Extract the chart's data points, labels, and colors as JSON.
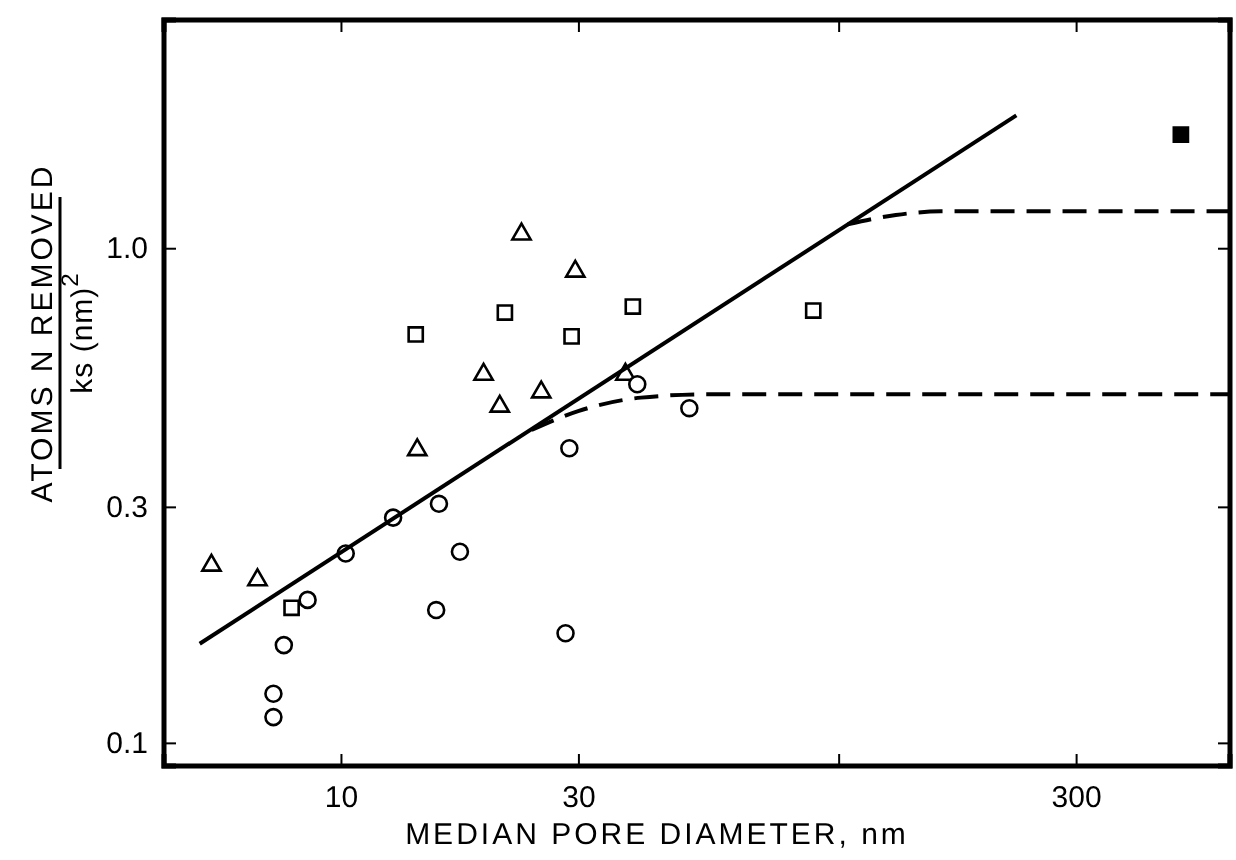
{
  "chart_data": {
    "type": "scatter",
    "xlabel": "MEDIAN PORE DIAMETER, nm",
    "ylabel": "ATOMS N REMOVED\nks (nm)$^{2}$",
    "log": "xy",
    "grid": false,
    "xlim": [
      4.4,
      610
    ],
    "ylim": [
      0.09,
      2.9
    ],
    "xticks": [
      10,
      30,
      {
        "value": 100,
        "label": null
      },
      300
    ],
    "yticks": [
      0.1,
      0.3,
      {
        "value": 1,
        "label": "1.0"
      }
    ],
    "series": [
      {
        "marker": "triangle",
        "color": "#ffffff",
        "x": [
          5.48,
          6.78,
          14.2,
          19.3,
          20.8,
          23.0,
          25.2,
          29.5,
          37.2
        ],
        "values": [
          0.229,
          0.214,
          0.392,
          0.557,
          0.48,
          1.07,
          0.513,
          0.9,
          0.557
        ]
      },
      {
        "marker": "square",
        "color": "#ffffff",
        "x": [
          7.94,
          14.1,
          21.3,
          29.0,
          38.5,
          88.7
        ],
        "values": [
          0.188,
          0.671,
          0.743,
          0.665,
          0.764,
          0.75
        ]
      },
      {
        "marker": "square",
        "color": "#000000",
        "x": [
          486
        ],
        "values": [
          1.7
        ]
      },
      {
        "marker": "circle",
        "color": "#ffffff",
        "x": [
          8.55,
          7.66,
          7.3,
          7.3,
          10.2,
          12.7,
          15.7,
          17.3,
          15.5,
          28.2,
          28.7,
          39.3,
          50.0
        ],
        "values": [
          0.195,
          0.158,
          0.126,
          0.113,
          0.242,
          0.286,
          0.305,
          0.244,
          0.186,
          0.167,
          0.395,
          0.532,
          0.476
        ]
      },
      {
        "type": "line",
        "line_style": "solid",
        "color": "#000000",
        "x": [
          5.19,
          227
        ],
        "values": [
          0.159,
          1.86
        ]
      },
      {
        "type": "line",
        "line_style": "dashed",
        "color": "#000000",
        "x": [
          24.1,
          30,
          40,
          55,
          610
        ],
        "values": [
          0.43,
          0.47,
          0.5,
          0.508,
          0.508
        ]
      },
      {
        "type": "line",
        "line_style": "dashed",
        "color": "#000000",
        "x": [
          104,
          130,
          160,
          610
        ],
        "values": [
          1.12,
          1.17,
          1.19,
          1.19
        ]
      }
    ]
  }
}
